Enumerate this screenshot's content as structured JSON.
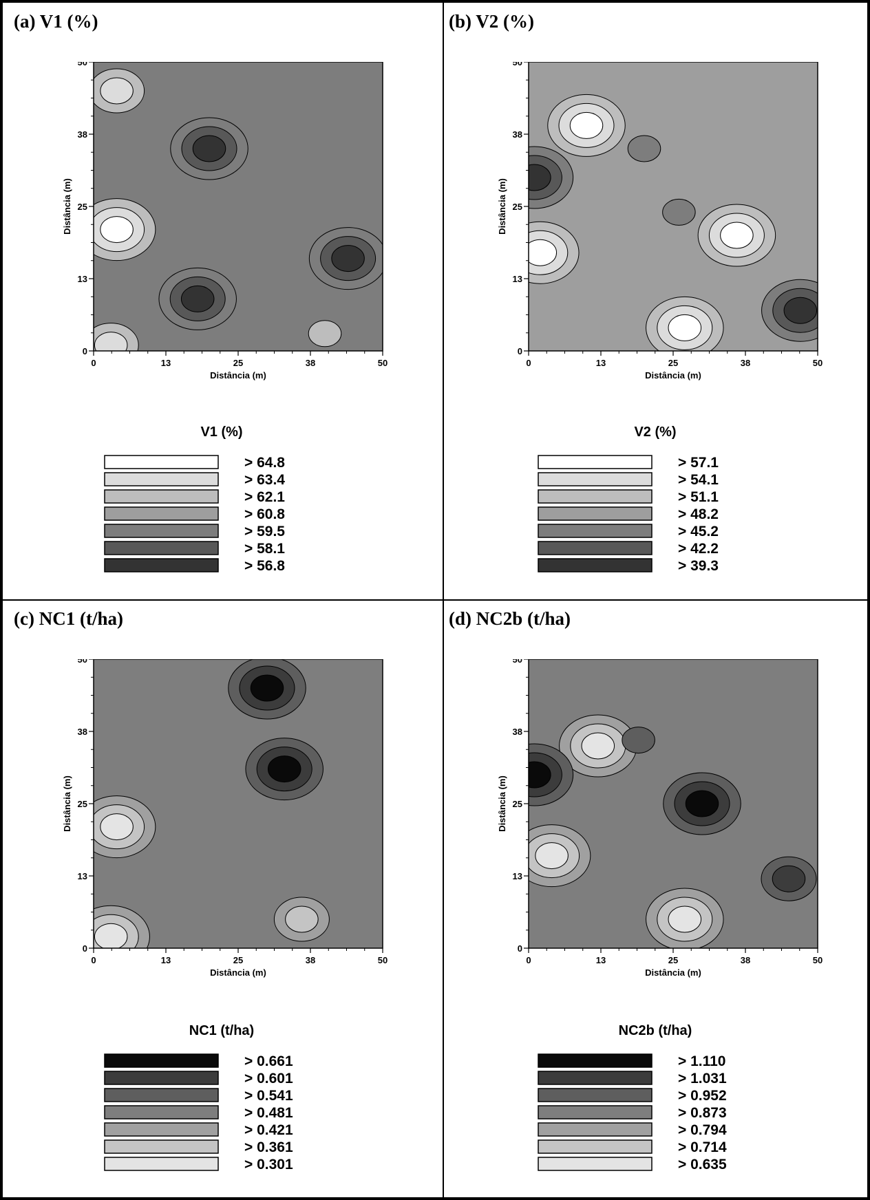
{
  "panels": [
    {
      "id": "a",
      "title": "(a) V1 (%)",
      "xlabel": "Distância (m)",
      "ylabel": "Distância (m)",
      "ticks": [
        "0",
        "13",
        "25",
        "38",
        "50"
      ],
      "legend_title": "V1 (%)",
      "legend": [
        {
          "label": "> 64.8",
          "color": "#ffffff"
        },
        {
          "label": "> 63.4",
          "color": "#dcdcdc"
        },
        {
          "label": "> 62.1",
          "color": "#bdbdbd"
        },
        {
          "label": "> 60.8",
          "color": "#9e9e9e"
        },
        {
          "label": "> 59.5",
          "color": "#7d7d7d"
        },
        {
          "label": "> 58.1",
          "color": "#585858"
        },
        {
          "label": "> 56.8",
          "color": "#333333"
        }
      ]
    },
    {
      "id": "b",
      "title": "(b) V2 (%)",
      "xlabel": "Distância (m)",
      "ylabel": "Distância (m)",
      "ticks": [
        "0",
        "13",
        "25",
        "38",
        "50"
      ],
      "legend_title": "V2 (%)",
      "legend": [
        {
          "label": "> 57.1",
          "color": "#ffffff"
        },
        {
          "label": "> 54.1",
          "color": "#dcdcdc"
        },
        {
          "label": "> 51.1",
          "color": "#bdbdbd"
        },
        {
          "label": "> 48.2",
          "color": "#9e9e9e"
        },
        {
          "label": "> 45.2",
          "color": "#7d7d7d"
        },
        {
          "label": "> 42.2",
          "color": "#585858"
        },
        {
          "label": "> 39.3",
          "color": "#333333"
        }
      ]
    },
    {
      "id": "c",
      "title": "(c) NC1 (t/ha)",
      "xlabel": "Distância (m)",
      "ylabel": "Distância (m)",
      "ticks": [
        "0",
        "13",
        "25",
        "38",
        "50"
      ],
      "legend_title": "NC1 (t/ha)",
      "legend": [
        {
          "label": "> 0.661",
          "color": "#0a0a0a"
        },
        {
          "label": "> 0.601",
          "color": "#3c3c3c"
        },
        {
          "label": "> 0.541",
          "color": "#5e5e5e"
        },
        {
          "label": "> 0.481",
          "color": "#7e7e7e"
        },
        {
          "label": "> 0.421",
          "color": "#a0a0a0"
        },
        {
          "label": "> 0.361",
          "color": "#c4c4c4"
        },
        {
          "label": "> 0.301",
          "color": "#e4e4e4"
        }
      ]
    },
    {
      "id": "d",
      "title": "(d) NC2b (t/ha)",
      "xlabel": "Distância (m)",
      "ylabel": "Distância (m)",
      "ticks": [
        "0",
        "13",
        "25",
        "38",
        "50"
      ],
      "legend_title": "NC2b (t/ha)",
      "legend": [
        {
          "label": "> 1.110",
          "color": "#0a0a0a"
        },
        {
          "label": "> 1.031",
          "color": "#3c3c3c"
        },
        {
          "label": "> 0.952",
          "color": "#5e5e5e"
        },
        {
          "label": "> 0.873",
          "color": "#7e7e7e"
        },
        {
          "label": "> 0.794",
          "color": "#a0a0a0"
        },
        {
          "label": "> 0.714",
          "color": "#c4c4c4"
        },
        {
          "label": "> 0.635",
          "color": "#e4e4e4"
        }
      ]
    }
  ],
  "chart_data": [
    {
      "type": "heatmap",
      "title": "V1 (%)",
      "xlabel": "Distância (m)",
      "ylabel": "Distância (m)",
      "xlim": [
        0,
        50
      ],
      "ylim": [
        0,
        50
      ],
      "levels": [
        64.8,
        63.4,
        62.1,
        60.8,
        59.5,
        58.1,
        56.8
      ],
      "blobs": [
        {
          "x": 4,
          "y": 21,
          "level": 64.8
        },
        {
          "x": 3,
          "y": 1,
          "level": 63.4
        },
        {
          "x": 20,
          "y": 35,
          "level": 56.8
        },
        {
          "x": 18,
          "y": 9,
          "level": 56.8
        },
        {
          "x": 44,
          "y": 16,
          "level": 56.8
        },
        {
          "x": 40,
          "y": 3,
          "level": 62.1
        },
        {
          "x": 4,
          "y": 45,
          "level": 63.4
        }
      ]
    },
    {
      "type": "heatmap",
      "title": "V2 (%)",
      "xlabel": "Distância (m)",
      "ylabel": "Distância (m)",
      "xlim": [
        0,
        50
      ],
      "ylim": [
        0,
        50
      ],
      "levels": [
        57.1,
        54.1,
        51.1,
        48.2,
        45.2,
        42.2,
        39.3
      ],
      "blobs": [
        {
          "x": 2,
          "y": 17,
          "level": 57.1
        },
        {
          "x": 10,
          "y": 39,
          "level": 57.1
        },
        {
          "x": 27,
          "y": 4,
          "level": 57.1
        },
        {
          "x": 36,
          "y": 20,
          "level": 57.1
        },
        {
          "x": 1,
          "y": 30,
          "level": 39.3
        },
        {
          "x": 47,
          "y": 7,
          "level": 39.3
        },
        {
          "x": 20,
          "y": 35,
          "level": 45.2
        },
        {
          "x": 26,
          "y": 24,
          "level": 45.2
        }
      ]
    },
    {
      "type": "heatmap",
      "title": "NC1 (t/ha)",
      "xlabel": "Distância (m)",
      "ylabel": "Distância (m)",
      "xlim": [
        0,
        50
      ],
      "ylim": [
        0,
        50
      ],
      "levels": [
        0.661,
        0.601,
        0.541,
        0.481,
        0.421,
        0.361,
        0.301
      ],
      "blobs": [
        {
          "x": 4,
          "y": 21,
          "level": 0.301
        },
        {
          "x": 3,
          "y": 2,
          "level": 0.301
        },
        {
          "x": 33,
          "y": 31,
          "level": 0.661
        },
        {
          "x": 30,
          "y": 45,
          "level": 0.661
        },
        {
          "x": 36,
          "y": 5,
          "level": 0.361
        }
      ]
    },
    {
      "type": "heatmap",
      "title": "NC2b (t/ha)",
      "xlabel": "Distância (m)",
      "ylabel": "Distância (m)",
      "xlim": [
        0,
        50
      ],
      "ylim": [
        0,
        50
      ],
      "levels": [
        1.11,
        1.031,
        0.952,
        0.873,
        0.794,
        0.714,
        0.635
      ],
      "blobs": [
        {
          "x": 4,
          "y": 16,
          "level": 0.635
        },
        {
          "x": 12,
          "y": 35,
          "level": 0.635
        },
        {
          "x": 27,
          "y": 5,
          "level": 0.635
        },
        {
          "x": 1,
          "y": 30,
          "level": 1.11
        },
        {
          "x": 30,
          "y": 25,
          "level": 1.11
        },
        {
          "x": 45,
          "y": 12,
          "level": 1.031
        },
        {
          "x": 19,
          "y": 36,
          "level": 0.952
        }
      ]
    }
  ]
}
